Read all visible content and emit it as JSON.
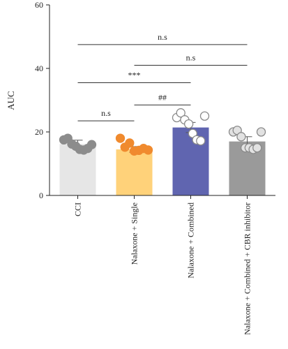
{
  "chart_data": {
    "type": "bar",
    "ylabel": "AUC",
    "ylim": [
      0,
      60
    ],
    "yticks": [
      "0",
      "20",
      "40",
      "60"
    ],
    "grid": false,
    "categories": [
      "CCI",
      "Nalaxone + Single",
      "Nalaxone + Combined",
      "Nalaxone + Combined + CBR inhibitor"
    ],
    "values": [
      16.2,
      14.5,
      21.4,
      17.0
    ],
    "errors": [
      1.2,
      0.9,
      1.6,
      1.5
    ],
    "colors": {
      "bars": [
        "#e6e6e6",
        "#ffd27a",
        "#6065b0",
        "#9a9a9a"
      ],
      "points_fill": [
        "#8c8c8c",
        "#f08a2e",
        "#ffffff",
        "#e2e2e2"
      ],
      "points_stroke": [
        "#8c8c8c",
        "#f08a2e",
        "#8a8a8a",
        "#8a8a8a"
      ]
    },
    "points": [
      [
        17.5,
        18.0,
        16.2,
        15.5,
        14.5,
        14.3,
        14.8,
        16.0
      ],
      [
        18.0,
        15.2,
        16.5,
        14.0,
        14.2,
        14.8,
        14.3
      ],
      [
        24.5,
        26.0,
        23.8,
        22.5,
        19.5,
        17.5,
        17.2,
        25.0
      ],
      [
        20.0,
        20.5,
        18.5,
        15.0,
        15.0,
        14.5,
        15.0,
        20.0
      ]
    ],
    "annotations": [
      {
        "text": "n.s",
        "from": 0,
        "to": 3,
        "y": 47.5
      },
      {
        "text": "n.s",
        "from": 1,
        "to": 3,
        "y": 41.0
      },
      {
        "text": "***",
        "from": 0,
        "to": 2,
        "y": 35.5
      },
      {
        "text": "##",
        "from": 1,
        "to": 2,
        "y": 28.5
      },
      {
        "text": "n.s",
        "from": 0,
        "to": 1,
        "y": 23.5
      }
    ]
  }
}
